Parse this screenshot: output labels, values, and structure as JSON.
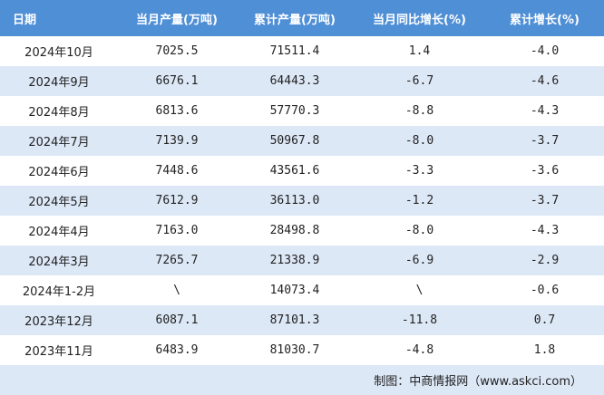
{
  "table": {
    "header": [
      "日期",
      "当月产量(万吨)",
      "累计产量(万吨)",
      "当月同比增长(%)",
      "累计增长(%)"
    ],
    "rows": [
      [
        "2024年10月",
        "7025.5",
        "71511.4",
        "1.4",
        "-4.0"
      ],
      [
        "2024年9月",
        "6676.1",
        "64443.3",
        "-6.7",
        "-4.6"
      ],
      [
        "2024年8月",
        "6813.6",
        "57770.3",
        "-8.8",
        "-4.3"
      ],
      [
        "2024年7月",
        "7139.9",
        "50967.8",
        "-8.0",
        "-3.7"
      ],
      [
        "2024年6月",
        "7448.6",
        "43561.6",
        "-3.3",
        "-3.6"
      ],
      [
        "2024年5月",
        "7612.9",
        "36113.0",
        "-1.2",
        "-3.7"
      ],
      [
        "2024年4月",
        "7163.0",
        "28498.8",
        "-8.0",
        "-4.3"
      ],
      [
        "2024年3月",
        "7265.7",
        "21338.9",
        "-6.9",
        "-2.9"
      ],
      [
        "2024年1-2月",
        "\\",
        "14073.4",
        "\\",
        "-0.6"
      ],
      [
        "2023年12月",
        "6087.1",
        "87101.3",
        "-11.8",
        "0.7"
      ],
      [
        "2023年11月",
        "6483.9",
        "81030.7",
        "-4.8",
        "1.8"
      ]
    ],
    "source": "制图：中商情报网（www.askci.com）"
  }
}
